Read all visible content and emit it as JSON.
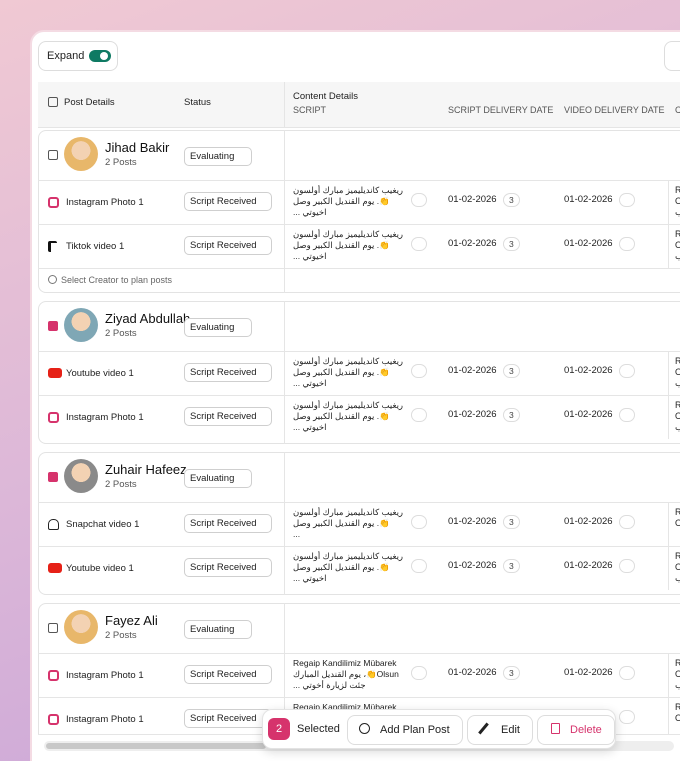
{
  "toolbar": {
    "expand": "Expand"
  },
  "table": {
    "headers": {
      "post_details": "Post Details",
      "status": "Status",
      "content_details": "Content Details",
      "script": "SCRIPT",
      "script_delivery_date": "SCRIPT DELIVERY DATE",
      "video_delivery_date": "VIDEO DELIVERY DATE",
      "next": "C"
    },
    "groups": [
      {
        "name": "Jihad Bakir",
        "posts": "2 Posts",
        "status": "Evaluating",
        "checked": false,
        "avatar": "#e8b76a",
        "rows": [
          {
            "platform": "instagram",
            "title": "Instagram Photo 1",
            "status": "Script Received",
            "script": [
              "ريغيب كانديليميز مبارك أولسون",
              "👏. يوم القنديل الكبير وصل",
              "اخيوتي ..."
            ],
            "script_date": "01-02-2026",
            "comments": 3,
            "video_date": "01-02-2026",
            "next": [
              "R",
              "O",
              "ب"
            ]
          },
          {
            "platform": "tiktok",
            "title": "Tiktok video 1",
            "status": "Script Received",
            "script": [
              "ريغيب كانديليميز مبارك أولسون",
              "👏. يوم القنديل الكبير وصل",
              "اخيوتي ..."
            ],
            "script_date": "01-02-2026",
            "comments": 3,
            "video_date": "01-02-2026",
            "next": [
              "R",
              "O",
              "ب"
            ]
          }
        ],
        "note": "Select Creator to plan posts"
      },
      {
        "name": "Ziyad Abdullah",
        "posts": "2 Posts",
        "status": "Evaluating",
        "checked": true,
        "avatar": "#7fa7b5",
        "rows": [
          {
            "platform": "youtube",
            "title": "Youtube video 1",
            "status": "Script Received",
            "script": [
              "ريغيب كانديليميز مبارك أولسون",
              "👏. يوم القنديل الكبير وصل",
              "اخيوتي ..."
            ],
            "script_date": "01-02-2026",
            "comments": 3,
            "video_date": "01-02-2026",
            "next": [
              "R",
              "O",
              "ب"
            ]
          },
          {
            "platform": "instagram",
            "title": "Instagram Photo 1",
            "status": "Script Received",
            "script": [
              "ريغيب كانديليميز مبارك أولسون",
              "👏. يوم القنديل الكبير وصل",
              "اخيوتي ..."
            ],
            "script_date": "01-02-2026",
            "comments": 3,
            "video_date": "01-02-2026",
            "next": [
              "R",
              "O",
              "ب"
            ]
          }
        ]
      },
      {
        "name": "Zuhair Hafeez",
        "posts": "2 Posts",
        "status": "Evaluating",
        "checked": true,
        "avatar": "#8a8a8a",
        "rows": [
          {
            "platform": "snapchat",
            "title": "Snapchat video 1",
            "status": "Script Received",
            "script": [
              "ريغيب كانديليميز مبارك أولسون",
              "👏. يوم القنديل الكبير وصل",
              "..."
            ],
            "script_date": "01-02-2026",
            "comments": 3,
            "video_date": "01-02-2026",
            "next": [
              "R",
              "O"
            ]
          },
          {
            "platform": "youtube",
            "title": "Youtube video 1",
            "status": "Script Received",
            "script": [
              "ريغيب كانديليميز مبارك أولسون",
              "👏. يوم القنديل الكبير وصل",
              "اخيوتي ..."
            ],
            "script_date": "01-02-2026",
            "comments": 3,
            "video_date": "01-02-2026",
            "next": [
              "R",
              "O",
              "ب"
            ]
          }
        ]
      },
      {
        "name": "Fayez Ali",
        "posts": "2 Posts",
        "status": "Evaluating",
        "checked": false,
        "avatar": "#e8b76a",
        "rows": [
          {
            "platform": "instagram",
            "title": "Instagram Photo 1",
            "status": "Script Received",
            "script": [
              "Regaip Kandilimiz Mübarek",
              "Olsun👏، يوم القنديل المبارك",
              "جئت لزيارة أخوتي ..."
            ],
            "script_date": "01-02-2026",
            "comments": 3,
            "video_date": "01-02-2026",
            "next": [
              "R",
              "O",
              "ب"
            ]
          },
          {
            "platform": "instagram",
            "title": "Instagram Photo 1",
            "status": "Script Received",
            "script": [
              "Regaip Kandilimiz Mübarek"
            ],
            "script_date": "01-02-2026",
            "comments": 3,
            "video_date": "01-02-2026",
            "next": [
              "R",
              "O"
            ]
          }
        ]
      }
    ]
  },
  "action_bar": {
    "count": 2,
    "selected": "Selected",
    "add": "Add Plan Post",
    "edit": "Edit",
    "delete": "Delete"
  }
}
